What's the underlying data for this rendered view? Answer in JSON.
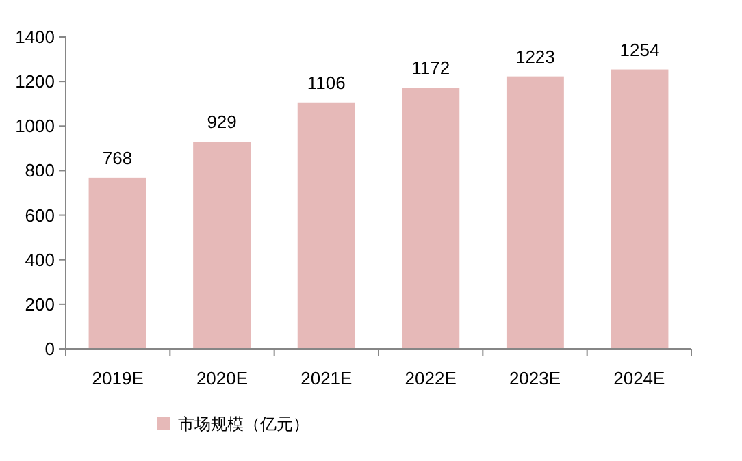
{
  "chart_data": {
    "type": "bar",
    "categories": [
      "2019E",
      "2020E",
      "2021E",
      "2022E",
      "2023E",
      "2024E"
    ],
    "series": [
      {
        "name": "市场规模（亿元）",
        "color": "#e6b9b8",
        "values": [
          768,
          929,
          1106,
          1172,
          1223,
          1254
        ]
      }
    ],
    "ylim": [
      0,
      1400
    ],
    "yticks": [
      0,
      200,
      400,
      600,
      800,
      1000,
      1200,
      1400
    ],
    "data_labels": true,
    "grid": false,
    "legend": "bottom"
  }
}
